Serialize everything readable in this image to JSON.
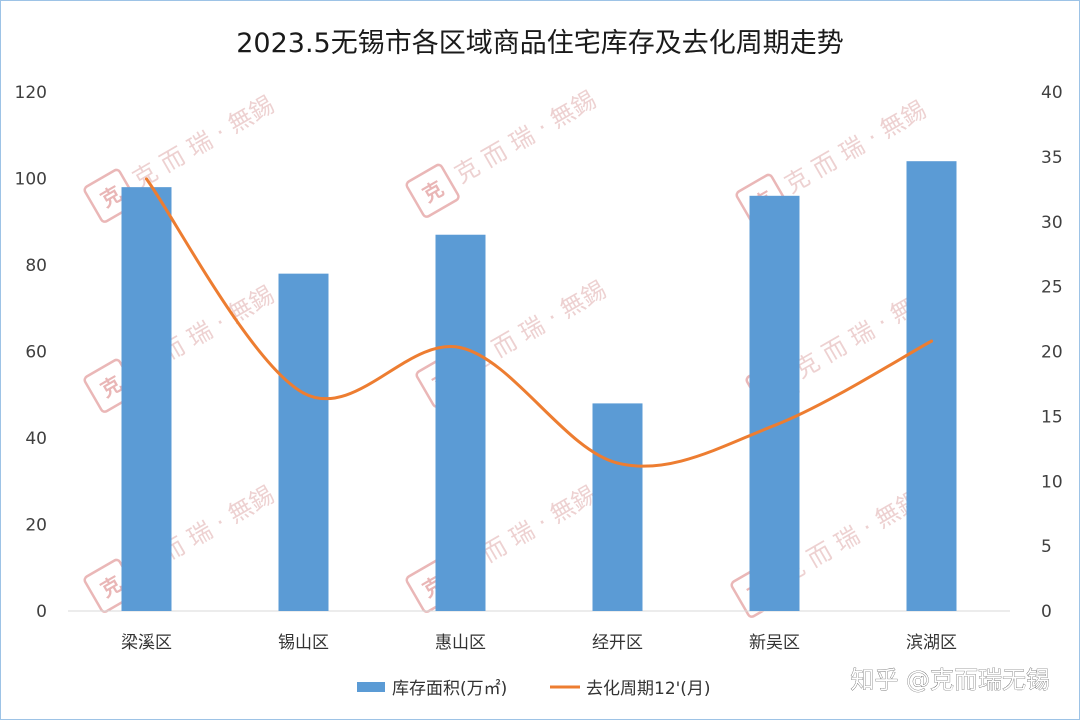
{
  "chart_data": {
    "type": "bar+line",
    "title": "2023.5无锡市各区域商品住宅库存及去化周期走势",
    "categories": [
      "梁溪区",
      "锡山区",
      "惠山区",
      "经开区",
      "新吴区",
      "滨湖区"
    ],
    "series": [
      {
        "name": "库存面积(万㎡)",
        "type": "bar",
        "axis": "left",
        "color": "#5b9bd5",
        "values": [
          98,
          78,
          87,
          48,
          96,
          104
        ]
      },
      {
        "name": "去化周期12'(月)",
        "type": "line",
        "axis": "right",
        "color": "#ed7d31",
        "smooth": true,
        "values": [
          33.3,
          16.8,
          20.3,
          11.4,
          14.3,
          20.8
        ]
      }
    ],
    "y_left": {
      "min": 0,
      "max": 120,
      "ticks": [
        "0",
        "20",
        "40",
        "60",
        "80",
        "100",
        "120"
      ]
    },
    "y_right": {
      "min": 0,
      "max": 40,
      "ticks": [
        "0",
        "5",
        "10",
        "15",
        "20",
        "25",
        "30",
        "35",
        "40"
      ]
    },
    "grid": false,
    "legend": "bottom"
  },
  "watermark": {
    "text": "克 而 瑞 · 無錫",
    "seal": "克而瑞",
    "seal_color": "#d56f6f"
  },
  "attribution": "知乎 @克而瑞无锡"
}
